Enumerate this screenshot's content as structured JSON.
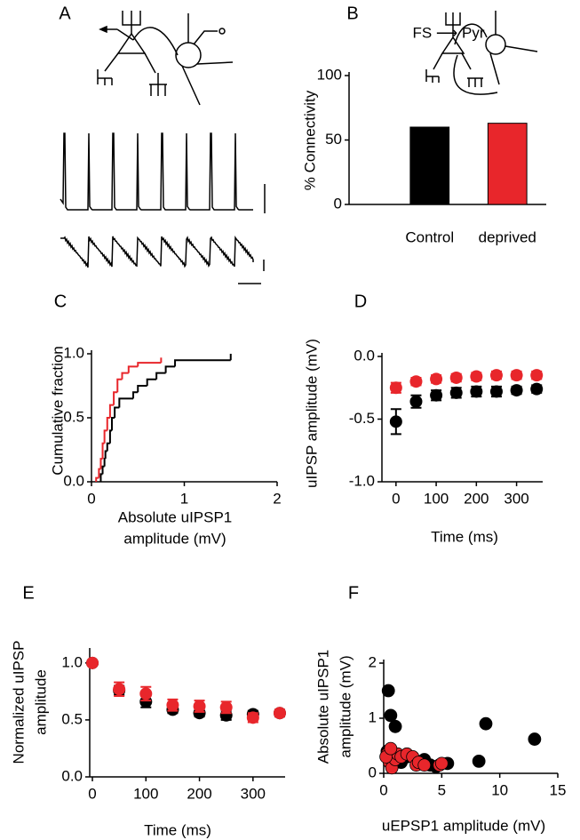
{
  "panel_a": {
    "panel": "A"
  },
  "chart_data": [
    {
      "type": "bar",
      "panel": "B",
      "title": "FS ⟶ Pyr",
      "ylabel": "% Connectivity",
      "categories": [
        "Control",
        "deprived"
      ],
      "values": [
        60,
        63
      ],
      "colors": [
        "#000000",
        "#e8262b"
      ],
      "ylim": [
        0,
        100
      ],
      "yticks": [
        0,
        50,
        100
      ]
    },
    {
      "type": "step",
      "panel": "C",
      "ylabel": "Cumulative fraction",
      "xlabel": [
        "Absolute uIPSP1",
        "amplitude (mV)"
      ],
      "xlim": [
        0,
        2
      ],
      "xticks": [
        0,
        1,
        2
      ],
      "ylim": [
        0,
        1
      ],
      "yticks": [
        {
          "value": 0,
          "label": "0.0"
        },
        {
          "value": 0.5,
          "label": "0.5"
        },
        {
          "value": 1,
          "label": "1.0"
        }
      ],
      "series": [
        {
          "color": "#000000",
          "x": [
            0.1,
            0.12,
            0.14,
            0.15,
            0.17,
            0.2,
            0.22,
            0.25,
            0.3,
            0.45,
            0.5,
            0.6,
            0.7,
            0.8,
            0.9,
            1.5
          ],
          "values": [
            0.06,
            0.12,
            0.18,
            0.24,
            0.3,
            0.4,
            0.5,
            0.58,
            0.65,
            0.7,
            0.75,
            0.8,
            0.85,
            0.9,
            0.95,
            1.0
          ]
        },
        {
          "color": "#e8262b",
          "x": [
            0.05,
            0.08,
            0.1,
            0.12,
            0.14,
            0.17,
            0.2,
            0.24,
            0.28,
            0.33,
            0.4,
            0.5,
            0.75
          ],
          "values": [
            0.03,
            0.1,
            0.18,
            0.3,
            0.4,
            0.5,
            0.6,
            0.7,
            0.8,
            0.85,
            0.9,
            0.93,
            0.97
          ]
        }
      ]
    },
    {
      "type": "scatter",
      "panel": "D",
      "ylabel": "uIPSP amplitude (mV)",
      "xlabel": [
        "Time (ms)"
      ],
      "xlim": [
        -35,
        365
      ],
      "xticks": [
        0,
        100,
        200,
        300
      ],
      "ylim": [
        -1,
        0
      ],
      "yticks": [
        {
          "value": -1,
          "label": "-1.0"
        },
        {
          "value": -0.5,
          "label": "-0.5"
        },
        {
          "value": 0,
          "label": "0.0"
        }
      ],
      "x": [
        0,
        50,
        100,
        150,
        200,
        250,
        300,
        350
      ],
      "series": [
        {
          "color": "#000000",
          "values": [
            -0.52,
            -0.36,
            -0.31,
            -0.29,
            -0.28,
            -0.28,
            -0.27,
            -0.26
          ],
          "errors": [
            0.1,
            0.05,
            0.04,
            0.04,
            0.04,
            0.04,
            0.03,
            0.03
          ]
        },
        {
          "color": "#e8262b",
          "values": [
            -0.25,
            -0.2,
            -0.18,
            -0.17,
            -0.16,
            -0.15,
            -0.15,
            -0.15
          ],
          "errors": [
            0.04,
            0.03,
            0.03,
            0.03,
            0.03,
            0.03,
            0.03,
            0.03
          ]
        }
      ]
    },
    {
      "type": "scatter",
      "panel": "E",
      "ylabel": [
        "Normalized uIPSP",
        "amplitude"
      ],
      "xlabel": [
        "Time (ms)"
      ],
      "xlim": [
        -5,
        360
      ],
      "xticks": [
        0,
        100,
        200,
        300
      ],
      "ylim": [
        0,
        1.1
      ],
      "yticks": [
        {
          "value": 0,
          "label": "0.0"
        },
        {
          "value": 0.5,
          "label": "0.5"
        },
        {
          "value": 1,
          "label": "1.0"
        }
      ],
      "x": [
        0,
        50,
        100,
        150,
        200,
        250,
        300,
        350
      ],
      "series": [
        {
          "color": "#000000",
          "values": [
            1.0,
            0.76,
            0.66,
            0.59,
            0.56,
            0.54,
            0.55,
            0.56
          ],
          "errors": [
            0,
            0.04,
            0.05,
            0.03,
            0.03,
            0.04,
            0.03,
            0.03
          ]
        },
        {
          "color": "#e8262b",
          "values": [
            1.0,
            0.77,
            0.73,
            0.63,
            0.62,
            0.61,
            0.52,
            0.56
          ],
          "errors": [
            0,
            0.06,
            0.06,
            0.05,
            0.05,
            0.05,
            0.04,
            0.03
          ]
        }
      ]
    },
    {
      "type": "points",
      "panel": "F",
      "ylabel": [
        "Absolute uIPSP1",
        "amplitude (mV)"
      ],
      "xlabel": [
        "uEPSP1 amplitude (mV)"
      ],
      "xlim": [
        0,
        15
      ],
      "xticks": [
        0,
        5,
        10,
        15
      ],
      "ylim": [
        0,
        2
      ],
      "yticks": [
        0,
        1,
        2
      ],
      "series": [
        {
          "color": "#000000",
          "x": [
            0.4,
            0.6,
            1.0,
            0.3,
            8.8,
            13,
            8.2,
            4.0,
            5.5,
            3.5,
            2.0,
            1.5,
            4.5
          ],
          "values": [
            1.5,
            1.05,
            0.85,
            0.4,
            0.9,
            0.62,
            0.22,
            0.15,
            0.18,
            0.25,
            0.3,
            0.2,
            0.12
          ]
        },
        {
          "color": "#e8262b",
          "x": [
            0.3,
            0.5,
            0.7,
            1.0,
            1.2,
            1.5,
            2.0,
            2.5,
            2.8,
            3.0,
            3.5,
            4.8,
            5.0,
            0.2,
            0.6
          ],
          "values": [
            0.35,
            0.2,
            0.1,
            0.25,
            0.35,
            0.3,
            0.35,
            0.3,
            0.15,
            0.2,
            0.15,
            0.15,
            0.18,
            0.3,
            0.45
          ]
        }
      ]
    }
  ]
}
